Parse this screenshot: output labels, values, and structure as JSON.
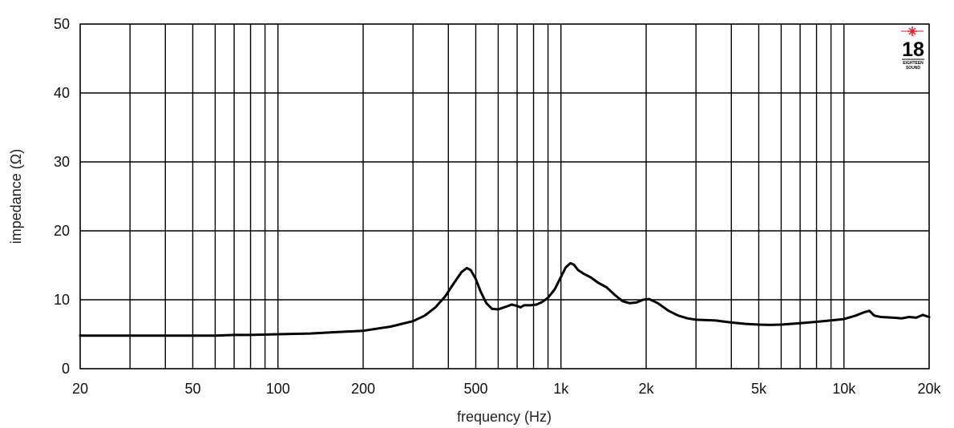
{
  "chart_data": {
    "type": "line",
    "title": "",
    "xlabel": "frequency (Hz)",
    "ylabel": "impedance (Ω)",
    "xscale": "log",
    "xlim": [
      20,
      20000
    ],
    "ylim": [
      0,
      50
    ],
    "grid": true,
    "x_ticks": [
      {
        "value": 20,
        "label": "20"
      },
      {
        "value": 50,
        "label": "50"
      },
      {
        "value": 100,
        "label": "100"
      },
      {
        "value": 200,
        "label": "200"
      },
      {
        "value": 500,
        "label": "500"
      },
      {
        "value": 1000,
        "label": "1k"
      },
      {
        "value": 2000,
        "label": "2k"
      },
      {
        "value": 5000,
        "label": "5k"
      },
      {
        "value": 10000,
        "label": "10k"
      },
      {
        "value": 20000,
        "label": "20k"
      }
    ],
    "x_gridlines": [
      30,
      40,
      50,
      60,
      70,
      80,
      90,
      100,
      200,
      300,
      400,
      500,
      600,
      700,
      800,
      900,
      1000,
      2000,
      3000,
      4000,
      5000,
      6000,
      7000,
      8000,
      9000,
      10000
    ],
    "y_ticks": [
      0,
      10,
      20,
      30,
      40,
      50
    ],
    "series": [
      {
        "color": "#000000",
        "points": [
          [
            20,
            4.8
          ],
          [
            30,
            4.8
          ],
          [
            40,
            4.8
          ],
          [
            50,
            4.8
          ],
          [
            60,
            4.8
          ],
          [
            70,
            4.9
          ],
          [
            80,
            4.9
          ],
          [
            100,
            5.0
          ],
          [
            130,
            5.1
          ],
          [
            160,
            5.3
          ],
          [
            200,
            5.5
          ],
          [
            250,
            6.1
          ],
          [
            300,
            6.9
          ],
          [
            330,
            7.7
          ],
          [
            360,
            8.9
          ],
          [
            390,
            10.5
          ],
          [
            420,
            12.5
          ],
          [
            445,
            14.0
          ],
          [
            465,
            14.6
          ],
          [
            480,
            14.3
          ],
          [
            500,
            13.0
          ],
          [
            520,
            11.2
          ],
          [
            545,
            9.5
          ],
          [
            570,
            8.7
          ],
          [
            600,
            8.6
          ],
          [
            640,
            9.0
          ],
          [
            670,
            9.3
          ],
          [
            700,
            9.1
          ],
          [
            720,
            8.9
          ],
          [
            740,
            9.2
          ],
          [
            780,
            9.2
          ],
          [
            820,
            9.3
          ],
          [
            860,
            9.7
          ],
          [
            900,
            10.3
          ],
          [
            950,
            11.5
          ],
          [
            1000,
            13.3
          ],
          [
            1040,
            14.7
          ],
          [
            1080,
            15.3
          ],
          [
            1110,
            15.1
          ],
          [
            1150,
            14.3
          ],
          [
            1200,
            13.8
          ],
          [
            1280,
            13.2
          ],
          [
            1350,
            12.5
          ],
          [
            1450,
            11.8
          ],
          [
            1550,
            10.7
          ],
          [
            1650,
            9.8
          ],
          [
            1750,
            9.5
          ],
          [
            1850,
            9.6
          ],
          [
            1950,
            10.0
          ],
          [
            2050,
            10.1
          ],
          [
            2200,
            9.5
          ],
          [
            2400,
            8.4
          ],
          [
            2600,
            7.7
          ],
          [
            2800,
            7.3
          ],
          [
            3000,
            7.1
          ],
          [
            3500,
            7.0
          ],
          [
            4000,
            6.7
          ],
          [
            4500,
            6.5
          ],
          [
            5000,
            6.4
          ],
          [
            5500,
            6.35
          ],
          [
            6000,
            6.4
          ],
          [
            7000,
            6.6
          ],
          [
            8000,
            6.8
          ],
          [
            9000,
            7.0
          ],
          [
            10000,
            7.2
          ],
          [
            11000,
            7.7
          ],
          [
            11800,
            8.2
          ],
          [
            12300,
            8.4
          ],
          [
            12800,
            7.7
          ],
          [
            13500,
            7.5
          ],
          [
            15000,
            7.4
          ],
          [
            16000,
            7.3
          ],
          [
            17000,
            7.5
          ],
          [
            18000,
            7.4
          ],
          [
            19000,
            7.8
          ],
          [
            20000,
            7.5
          ]
        ]
      }
    ]
  },
  "logo": {
    "number": "18",
    "line1": "EIGHTEEN",
    "line2": "SOUND",
    "star_color": "#e31b23"
  }
}
